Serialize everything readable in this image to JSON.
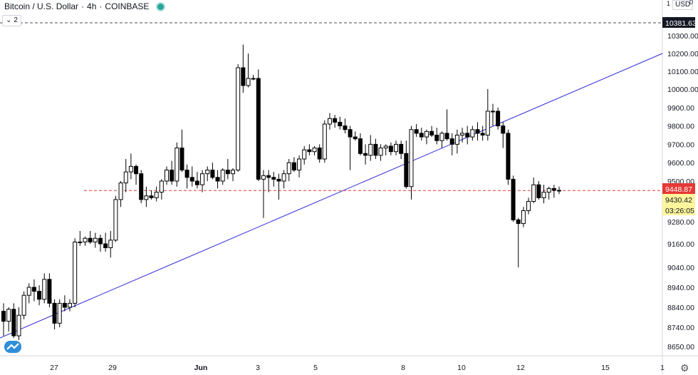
{
  "header": {
    "symbol": "Bitcoin / U.S. Dollar",
    "interval": "4h",
    "exchange": "COINBASE",
    "sep1": "·",
    "sep2": "·"
  },
  "collapse": {
    "count": "2"
  },
  "axis_top": {
    "corner_label": "1",
    "currency": "USD",
    "currency_badge": "0"
  },
  "price_labels": {
    "dashed_high": "10381.63",
    "last_price": "9448.87",
    "secondary": "9430.42",
    "countdown": "03:26:05"
  },
  "colors": {
    "line": "#2a2ad8",
    "dashed_high": "#4a4a4a",
    "last_price": "#e53935",
    "secondary_bg": "#fff59d",
    "candle": "#000000",
    "axis_bg": "#ffffff"
  },
  "chart_data": {
    "type": "candlestick",
    "title": "Bitcoin / U.S. Dollar · 4h · COINBASE",
    "y_ticks": [
      8650,
      8740,
      8840,
      8940,
      9040,
      9160,
      9280,
      9500,
      9600,
      9700,
      9800,
      9900,
      10000,
      10100,
      10200,
      10300
    ],
    "y_tick_labels": [
      "8650.00",
      "8740.00",
      "8840.00",
      "8940.00",
      "9040.00",
      "9160.00",
      "9280.00",
      "9500.00",
      "9600.00",
      "9700.00",
      "9800.00",
      "9900.00",
      "10000.00",
      "10100.00",
      "10200.00",
      "10300.00"
    ],
    "x_ticks": [
      "27",
      "29",
      "Jun",
      "3",
      "5",
      "8",
      "10",
      "12",
      "15",
      "1"
    ],
    "horizontal_levels": [
      10381.63,
      9448.87
    ],
    "trend_line": {
      "from": [
        0,
        8690
      ],
      "to": [
        930,
        10200
      ]
    },
    "candles": [
      [
        8820,
        8860,
        8700,
        8770
      ],
      [
        8770,
        8840,
        8720,
        8830
      ],
      [
        8830,
        8860,
        8690,
        8700
      ],
      [
        8700,
        8840,
        8680,
        8800
      ],
      [
        8800,
        8920,
        8780,
        8900
      ],
      [
        8900,
        8960,
        8860,
        8940
      ],
      [
        8940,
        8980,
        8870,
        8920
      ],
      [
        8920,
        8950,
        8850,
        8880
      ],
      [
        8880,
        9010,
        8860,
        8980
      ],
      [
        8980,
        9010,
        8840,
        8860
      ],
      [
        8860,
        8880,
        8730,
        8760
      ],
      [
        8760,
        8880,
        8740,
        8860
      ],
      [
        8860,
        8900,
        8820,
        8840
      ],
      [
        8840,
        8880,
        8820,
        8860
      ],
      [
        8860,
        9190,
        8840,
        9170
      ],
      [
        9170,
        9230,
        9150,
        9170
      ],
      [
        9170,
        9200,
        9150,
        9190
      ],
      [
        9190,
        9230,
        9160,
        9170
      ],
      [
        9170,
        9220,
        9140,
        9190
      ],
      [
        9190,
        9210,
        9120,
        9160
      ],
      [
        9160,
        9220,
        9120,
        9140
      ],
      [
        9140,
        9230,
        9090,
        9180
      ],
      [
        9180,
        9420,
        9170,
        9400
      ],
      [
        9400,
        9500,
        9360,
        9490
      ],
      [
        9490,
        9620,
        9440,
        9550
      ],
      [
        9550,
        9650,
        9510,
        9580
      ],
      [
        9580,
        9590,
        9480,
        9540
      ],
      [
        9540,
        9560,
        9380,
        9400
      ],
      [
        9400,
        9470,
        9360,
        9420
      ],
      [
        9420,
        9450,
        9400,
        9410
      ],
      [
        9410,
        9470,
        9390,
        9440
      ],
      [
        9440,
        9510,
        9400,
        9500
      ],
      [
        9500,
        9580,
        9480,
        9560
      ],
      [
        9560,
        9610,
        9480,
        9500
      ],
      [
        9500,
        9710,
        9470,
        9680
      ],
      [
        9680,
        9780,
        9550,
        9560
      ],
      [
        9560,
        9590,
        9460,
        9520
      ],
      [
        9520,
        9580,
        9470,
        9500
      ],
      [
        9500,
        9550,
        9460,
        9480
      ],
      [
        9480,
        9560,
        9440,
        9540
      ],
      [
        9540,
        9580,
        9500,
        9560
      ],
      [
        9560,
        9600,
        9510,
        9520
      ],
      [
        9520,
        9560,
        9460,
        9500
      ],
      [
        9500,
        9570,
        9480,
        9560
      ],
      [
        9560,
        9620,
        9510,
        9540
      ],
      [
        9540,
        9570,
        9500,
        9560
      ],
      [
        9560,
        10140,
        9550,
        10120
      ],
      [
        10120,
        10250,
        9980,
        10020
      ],
      [
        10020,
        10200,
        10010,
        10060
      ],
      [
        10060,
        10080,
        10050,
        10060
      ],
      [
        10060,
        10110,
        9500,
        9510
      ],
      [
        9510,
        9560,
        9300,
        9530
      ],
      [
        9530,
        9560,
        9440,
        9520
      ],
      [
        9520,
        9550,
        9470,
        9510
      ],
      [
        9510,
        9540,
        9400,
        9500
      ],
      [
        9500,
        9560,
        9460,
        9540
      ],
      [
        9540,
        9620,
        9500,
        9600
      ],
      [
        9600,
        9630,
        9550,
        9560
      ],
      [
        9560,
        9640,
        9520,
        9620
      ],
      [
        9620,
        9690,
        9590,
        9670
      ],
      [
        9670,
        9700,
        9640,
        9660
      ],
      [
        9660,
        9690,
        9640,
        9680
      ],
      [
        9680,
        9700,
        9600,
        9620
      ],
      [
        9620,
        9830,
        9600,
        9810
      ],
      [
        9810,
        9870,
        9780,
        9840
      ],
      [
        9840,
        9860,
        9790,
        9820
      ],
      [
        9820,
        9850,
        9780,
        9800
      ],
      [
        9800,
        9840,
        9760,
        9780
      ],
      [
        9780,
        9800,
        9560,
        9740
      ],
      [
        9740,
        9770,
        9720,
        9730
      ],
      [
        9730,
        9760,
        9640,
        9650
      ],
      [
        9650,
        9700,
        9590,
        9640
      ],
      [
        9640,
        9750,
        9610,
        9700
      ],
      [
        9700,
        9730,
        9620,
        9640
      ],
      [
        9640,
        9700,
        9610,
        9680
      ],
      [
        9680,
        9700,
        9640,
        9690
      ],
      [
        9690,
        9710,
        9640,
        9660
      ],
      [
        9660,
        9720,
        9640,
        9700
      ],
      [
        9700,
        9720,
        9620,
        9650
      ],
      [
        9650,
        9720,
        9460,
        9470
      ],
      [
        9470,
        9800,
        9400,
        9780
      ],
      [
        9780,
        9810,
        9740,
        9760
      ],
      [
        9760,
        9790,
        9720,
        9740
      ],
      [
        9740,
        9780,
        9700,
        9770
      ],
      [
        9770,
        9800,
        9740,
        9750
      ],
      [
        9750,
        9790,
        9700,
        9720
      ],
      [
        9720,
        9770,
        9680,
        9760
      ],
      [
        9760,
        9890,
        9720,
        9730
      ],
      [
        9730,
        9760,
        9640,
        9700
      ],
      [
        9700,
        9780,
        9650,
        9750
      ],
      [
        9750,
        9790,
        9710,
        9760
      ],
      [
        9760,
        9800,
        9700,
        9740
      ],
      [
        9740,
        9800,
        9720,
        9780
      ],
      [
        9780,
        9820,
        9720,
        9760
      ],
      [
        9760,
        9800,
        9720,
        9750
      ],
      [
        9750,
        10000,
        9720,
        9880
      ],
      [
        9880,
        9920,
        9800,
        9880
      ],
      [
        9880,
        9900,
        9780,
        9800
      ],
      [
        9800,
        9820,
        9680,
        9760
      ],
      [
        9760,
        9780,
        9480,
        9510
      ],
      [
        9510,
        9530,
        9280,
        9290
      ],
      [
        9290,
        9300,
        9040,
        9270
      ],
      [
        9270,
        9360,
        9250,
        9340
      ],
      [
        9340,
        9410,
        9320,
        9390
      ],
      [
        9390,
        9520,
        9380,
        9480
      ],
      [
        9480,
        9500,
        9400,
        9410
      ],
      [
        9410,
        9480,
        9380,
        9440
      ],
      [
        9440,
        9470,
        9400,
        9460
      ],
      [
        9460,
        9480,
        9410,
        9450
      ],
      [
        9450,
        9470,
        9430,
        9448
      ]
    ]
  }
}
